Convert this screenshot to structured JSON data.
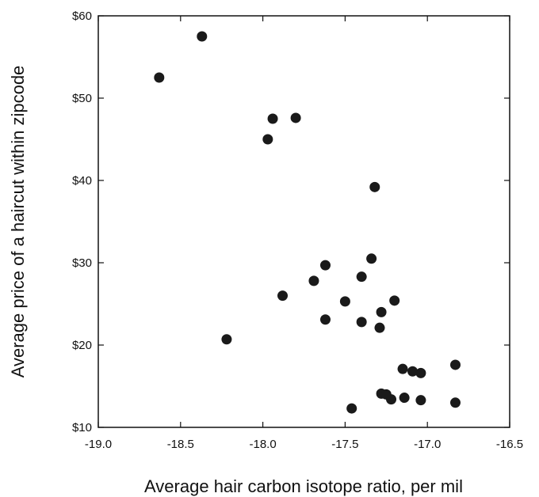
{
  "chart_data": {
    "type": "scatter",
    "title": "",
    "xlabel": "Average hair carbon isotope ratio, per mil",
    "ylabel": "Average price of a haircut within zipcode",
    "xlim": [
      -19.0,
      -16.5
    ],
    "ylim": [
      10,
      60
    ],
    "x_ticks": [
      -19.0,
      -18.5,
      -18.0,
      -17.5,
      -17.0,
      -16.5
    ],
    "x_tick_labels": [
      "-19.0",
      "-18.5",
      "-18.0",
      "-17.5",
      "-17.0",
      "-16.5"
    ],
    "y_ticks": [
      10,
      20,
      30,
      40,
      50,
      60
    ],
    "y_tick_labels": [
      "$10",
      "$20",
      "$30",
      "$40",
      "$50",
      "$60"
    ],
    "grid": false,
    "marker_color": "#1a1a1a",
    "points": [
      {
        "x": -18.63,
        "y": 52.5
      },
      {
        "x": -18.37,
        "y": 57.5
      },
      {
        "x": -17.97,
        "y": 45.0
      },
      {
        "x": -17.94,
        "y": 47.5
      },
      {
        "x": -17.8,
        "y": 47.6
      },
      {
        "x": -17.32,
        "y": 39.2
      },
      {
        "x": -18.22,
        "y": 20.7
      },
      {
        "x": -17.88,
        "y": 26.0
      },
      {
        "x": -17.69,
        "y": 27.8
      },
      {
        "x": -17.62,
        "y": 29.7
      },
      {
        "x": -17.62,
        "y": 23.1
      },
      {
        "x": -17.5,
        "y": 25.3
      },
      {
        "x": -17.4,
        "y": 28.3
      },
      {
        "x": -17.4,
        "y": 22.8
      },
      {
        "x": -17.34,
        "y": 30.5
      },
      {
        "x": -17.28,
        "y": 24.0
      },
      {
        "x": -17.29,
        "y": 22.1
      },
      {
        "x": -17.2,
        "y": 25.4
      },
      {
        "x": -17.46,
        "y": 12.3
      },
      {
        "x": -17.28,
        "y": 14.1
      },
      {
        "x": -17.25,
        "y": 14.0
      },
      {
        "x": -17.22,
        "y": 13.4
      },
      {
        "x": -17.15,
        "y": 17.1
      },
      {
        "x": -17.14,
        "y": 13.6
      },
      {
        "x": -17.09,
        "y": 16.8
      },
      {
        "x": -17.04,
        "y": 16.6
      },
      {
        "x": -17.04,
        "y": 13.3
      },
      {
        "x": -16.83,
        "y": 17.6
      },
      {
        "x": -16.83,
        "y": 13.0
      }
    ]
  }
}
